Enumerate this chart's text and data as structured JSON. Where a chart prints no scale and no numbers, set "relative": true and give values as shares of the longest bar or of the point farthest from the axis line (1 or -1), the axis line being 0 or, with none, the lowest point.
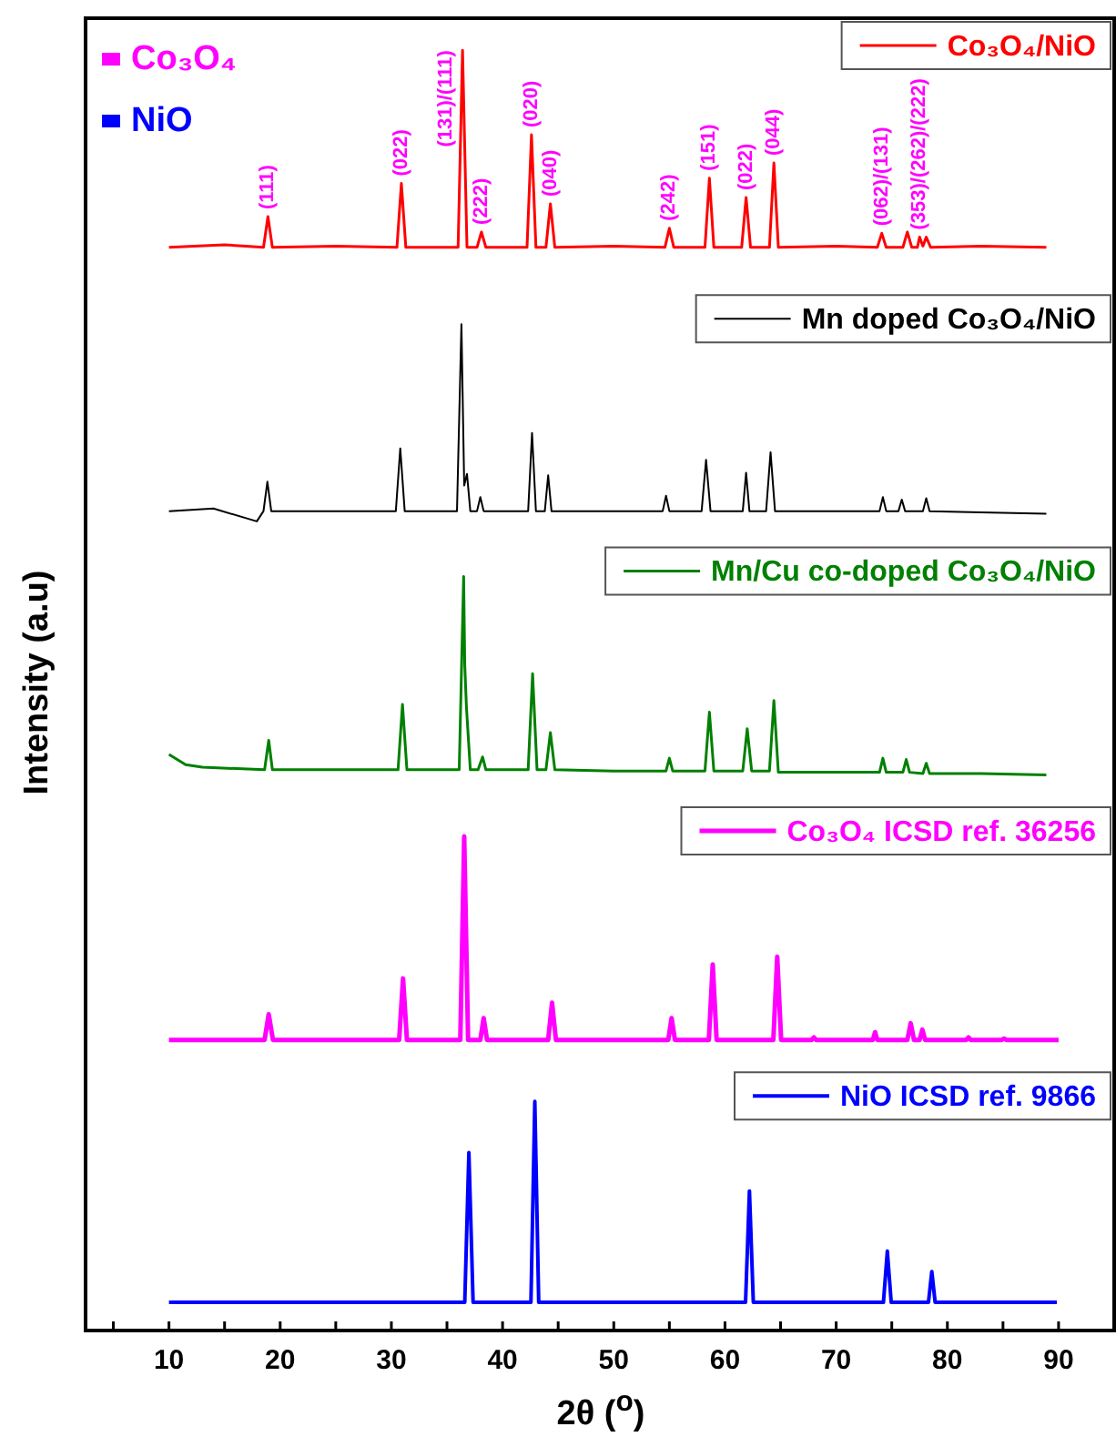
{
  "chart_data": {
    "type": "line",
    "relative": true,
    "xlabel": "2θ ($^{o}$)",
    "ylabel": "Intensity (a.u)",
    "xlim": [
      2.5,
      95
    ],
    "xticks": [
      {
        "value": 5,
        "label": null
      },
      10,
      {
        "value": 15,
        "label": null
      },
      20,
      {
        "value": 25,
        "label": null
      },
      30,
      {
        "value": 35,
        "label": null
      },
      40,
      {
        "value": 45,
        "label": null
      },
      50,
      {
        "value": 55,
        "label": null
      },
      60,
      {
        "value": 65,
        "label": null
      },
      70,
      {
        "value": 75,
        "label": null
      },
      80,
      {
        "value": 85,
        "label": null
      },
      90
    ],
    "legend": "right",
    "grid": false,
    "marker": "none",
    "line_style": "solid",
    "series": [
      {
        "name": "Co₃O₄/NiO",
        "color": "#ff0000",
        "x": [
          10,
          15,
          18.5,
          18.9,
          19.3,
          25,
          30.5,
          30.9,
          31.3,
          36.0,
          36.4,
          36.8,
          37.7,
          38.1,
          38.5,
          42.2,
          42.6,
          43.0,
          43.9,
          44.3,
          44.7,
          50,
          54.6,
          55.0,
          55.4,
          58.2,
          58.6,
          59.0,
          61.5,
          61.9,
          62.3,
          64.0,
          64.4,
          64.8,
          70,
          73.7,
          74.1,
          74.5,
          76.0,
          76.4,
          76.8,
          77.3,
          77.5,
          77.8,
          78.1,
          78.5,
          83,
          88.9
        ],
        "values": [
          0.846,
          0.848,
          0.846,
          0.87,
          0.846,
          0.847,
          0.846,
          0.896,
          0.846,
          0.846,
          1,
          0.846,
          0.846,
          0.858,
          0.846,
          0.846,
          0.934,
          0.846,
          0.846,
          0.88,
          0.846,
          0.847,
          0.846,
          0.861,
          0.846,
          0.846,
          0.9,
          0.846,
          0.846,
          0.885,
          0.846,
          0.846,
          0.912,
          0.846,
          0.847,
          0.846,
          0.857,
          0.846,
          0.846,
          0.858,
          0.846,
          0.846,
          0.854,
          0.847,
          0.854,
          0.846,
          0.847,
          0.846
        ]
      },
      {
        "name": "Mn doped Co₃O₄/NiO",
        "color": "#000000",
        "x": [
          10,
          14,
          17.9,
          18.5,
          18.85,
          19.2,
          25,
          30.4,
          30.8,
          31.2,
          35.9,
          36.3,
          36.55,
          36.8,
          37.1,
          37.7,
          38.0,
          38.3,
          42.3,
          42.65,
          43.0,
          43.8,
          44.1,
          44.4,
          50,
          54.4,
          54.7,
          55.0,
          57.9,
          58.3,
          58.7,
          61.6,
          61.9,
          62.2,
          63.7,
          64.1,
          64.5,
          70,
          73.9,
          74.2,
          74.5,
          75.6,
          75.9,
          76.2,
          77.8,
          78.1,
          78.4,
          83,
          88.9
        ],
        "values": [
          0.64,
          0.642,
          0.632,
          0.64,
          0.663,
          0.64,
          0.64,
          0.64,
          0.689,
          0.64,
          0.64,
          0.786,
          0.66,
          0.669,
          0.64,
          0.64,
          0.651,
          0.64,
          0.64,
          0.701,
          0.64,
          0.64,
          0.668,
          0.64,
          0.64,
          0.64,
          0.652,
          0.64,
          0.64,
          0.68,
          0.64,
          0.64,
          0.67,
          0.64,
          0.64,
          0.686,
          0.64,
          0.64,
          0.64,
          0.651,
          0.64,
          0.64,
          0.649,
          0.64,
          0.64,
          0.65,
          0.64,
          0.639,
          0.638
        ]
      },
      {
        "name": "Mn/Cu co-doped Co₃O₄/NiO",
        "color": "#008000",
        "x": [
          10,
          11.5,
          13,
          18.6,
          18.97,
          19.3,
          25,
          30.6,
          31.0,
          31.4,
          36.1,
          36.5,
          36.6,
          36.75,
          37.1,
          37.8,
          38.2,
          38.5,
          42.3,
          42.7,
          43.1,
          43.9,
          44.3,
          44.7,
          50,
          54.7,
          55.0,
          55.3,
          58.2,
          58.6,
          59.0,
          61.6,
          62.0,
          62.4,
          64.0,
          64.4,
          64.8,
          70,
          73.9,
          74.2,
          74.5,
          76.0,
          76.3,
          76.6,
          77.8,
          78.1,
          78.4,
          83,
          88.9
        ],
        "values": [
          0.45,
          0.442,
          0.44,
          0.438,
          0.461,
          0.438,
          0.438,
          0.438,
          0.489,
          0.438,
          0.438,
          0.589,
          0.52,
          0.487,
          0.438,
          0.438,
          0.448,
          0.438,
          0.438,
          0.513,
          0.438,
          0.438,
          0.467,
          0.438,
          0.437,
          0.437,
          0.447,
          0.437,
          0.437,
          0.483,
          0.437,
          0.437,
          0.47,
          0.437,
          0.437,
          0.492,
          0.436,
          0.436,
          0.436,
          0.447,
          0.436,
          0.436,
          0.446,
          0.436,
          0.435,
          0.443,
          0.435,
          0.435,
          0.434
        ]
      },
      {
        "name": "Co₃O₄ ICSD ref. 36256",
        "color": "#ff00ff",
        "x": [
          10,
          18.6,
          18.97,
          19.35,
          30.7,
          31.05,
          31.4,
          36.2,
          36.55,
          36.9,
          38.0,
          38.3,
          38.6,
          44.1,
          44.45,
          44.8,
          54.9,
          55.2,
          55.5,
          58.55,
          58.9,
          59.25,
          64.35,
          64.7,
          65.05,
          67.8,
          68.0,
          68.2,
          73.3,
          73.5,
          73.7,
          76.4,
          76.7,
          77.0,
          77.5,
          77.75,
          78.0,
          81.7,
          81.9,
          82.1,
          84.9,
          85.1,
          85.3,
          90.0
        ],
        "values": [
          0.227,
          0.227,
          0.247,
          0.227,
          0.227,
          0.275,
          0.227,
          0.227,
          0.386,
          0.227,
          0.227,
          0.244,
          0.227,
          0.227,
          0.256,
          0.227,
          0.227,
          0.244,
          0.227,
          0.227,
          0.286,
          0.227,
          0.227,
          0.292,
          0.227,
          0.227,
          0.229,
          0.227,
          0.227,
          0.233,
          0.227,
          0.227,
          0.24,
          0.227,
          0.227,
          0.235,
          0.227,
          0.227,
          0.229,
          0.227,
          0.227,
          0.228,
          0.227,
          0.227
        ]
      },
      {
        "name": "NiO ICSD ref. 9866",
        "color": "#0000ff",
        "x": [
          10,
          36.6,
          36.97,
          37.35,
          42.55,
          42.9,
          43.25,
          61.85,
          62.2,
          62.55,
          74.25,
          74.6,
          74.95,
          78.3,
          78.6,
          78.9,
          89.85
        ],
        "values": [
          0.022,
          0.022,
          0.139,
          0.022,
          0.022,
          0.179,
          0.022,
          0.022,
          0.109,
          0.022,
          0.022,
          0.062,
          0.022,
          0.022,
          0.046,
          0.022,
          0.022
        ]
      }
    ],
    "annotations": [
      "Co₃O₄",
      "NiO",
      {
        "text": "(111)",
        "x": 18.9,
        "y": 0.87
      },
      {
        "text": "(022)",
        "x": 30.9,
        "y": 0.896
      },
      {
        "text": "(131)/(111)",
        "x": 36.4,
        "y": 1
      },
      {
        "text": "(222)",
        "x": 38.1,
        "y": 0.858
      },
      {
        "text": "(020)",
        "x": 42.6,
        "y": 0.934
      },
      {
        "text": "(040)",
        "x": 44.3,
        "y": 0.88
      },
      {
        "text": "(242)",
        "x": 55.0,
        "y": 0.861
      },
      {
        "text": "(151)",
        "x": 58.6,
        "y": 0.9
      },
      {
        "text": "(022)",
        "x": 61.9,
        "y": 0.885
      },
      {
        "text": "(044)",
        "x": 64.4,
        "y": 0.912
      },
      {
        "text": "(062)/(131)",
        "x": 74.1,
        "y": 0.857
      },
      {
        "text": "(353)/(262)/(222)",
        "x": 77.5,
        "y": 0.854
      }
    ]
  }
}
